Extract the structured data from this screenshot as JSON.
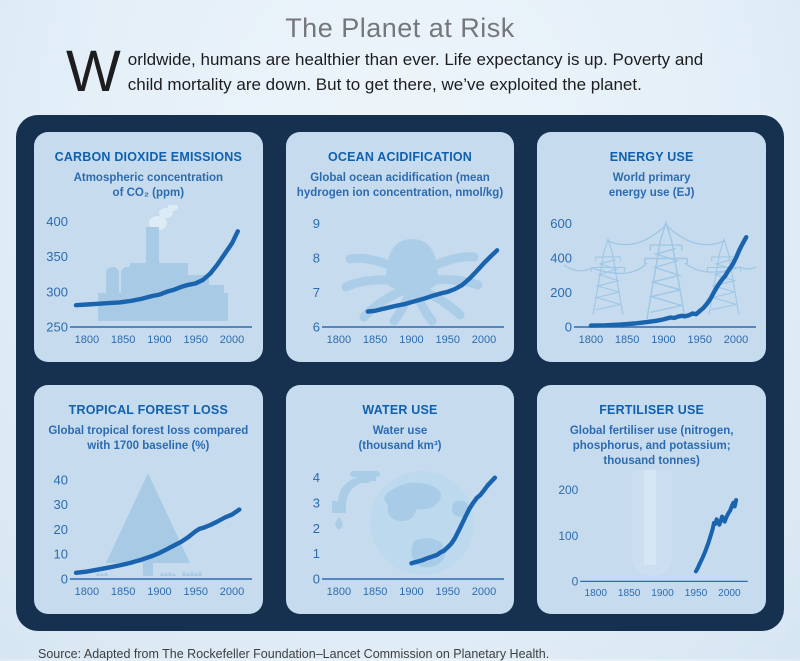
{
  "page": {
    "title": "The Planet at Risk",
    "intro_dropcap": "W",
    "intro_text": "orldwide, humans are healthier than ever. Life expectancy is up. Poverty and child mortality are down. But to get there, we’ve exploited the planet.",
    "source": "Source: Adapted from The Rockefeller Foundation–Lancet Commission on Planetary Health."
  },
  "colors": {
    "page_bg": "#e4eff8",
    "board_bg": "#16314f",
    "panel_bg": "#c6dcee",
    "line_accent": "#1a63ae",
    "panel_title": "#1060ae",
    "tick_text": "#2d6bb0",
    "icon_silhouette": "#a8cae5",
    "header_gray": "#75777b"
  },
  "panels": [
    {
      "title": "CARBON DIOXIDE EMISSIONS",
      "subtitle": "Atmospheric concentration\nof CO₂ (ppm)",
      "icon": "factory-icon"
    },
    {
      "title": "OCEAN ACIDIFICATION",
      "subtitle": "Global ocean acidification (mean\nhydrogen ion concentration, nmol/kg)",
      "icon": "octopus-icon"
    },
    {
      "title": "ENERGY USE",
      "subtitle": "World primary\nenergy use (EJ)",
      "icon": "pylons-icon"
    },
    {
      "title": "TROPICAL FOREST LOSS",
      "subtitle": "Global tropical forest loss compared\nwith 1700 baseline (%)",
      "icon": "tree-icon"
    },
    {
      "title": "WATER USE",
      "subtitle": "Water use\n(thousand km³)",
      "icon": "globe-faucet-icon"
    },
    {
      "title": "FERTILISER USE",
      "subtitle": "Global fertiliser use (nitrogen,\nphosphorus, and potassium;\nthousand tonnes)",
      "icon": "fertiliser-sack-icon"
    }
  ],
  "chart_data": [
    {
      "type": "line",
      "title": "CARBON DIOXIDE EMISSIONS",
      "ylabel": "Atmospheric concentration of CO₂ (ppm)",
      "x_domain": [
        1785,
        2022
      ],
      "x_ticks": [
        1800,
        1850,
        1900,
        1950,
        2000
      ],
      "y_domain": [
        250,
        412
      ],
      "y_ticks": [
        250,
        300,
        350,
        400
      ],
      "points": [
        [
          1785,
          281
        ],
        [
          1800,
          282
        ],
        [
          1815,
          283
        ],
        [
          1830,
          284
        ],
        [
          1845,
          285
        ],
        [
          1860,
          287
        ],
        [
          1875,
          290
        ],
        [
          1890,
          294
        ],
        [
          1900,
          296
        ],
        [
          1910,
          300
        ],
        [
          1920,
          303
        ],
        [
          1930,
          307
        ],
        [
          1940,
          310
        ],
        [
          1950,
          312
        ],
        [
          1960,
          317
        ],
        [
          1970,
          326
        ],
        [
          1980,
          339
        ],
        [
          1990,
          354
        ],
        [
          2000,
          369
        ],
        [
          2008,
          386
        ]
      ]
    },
    {
      "type": "line",
      "title": "OCEAN ACIDIFICATION",
      "ylabel": "Global ocean acidification (mean hydrogen ion concentration, nmol/kg)",
      "x_domain": [
        1785,
        2022
      ],
      "x_ticks": [
        1800,
        1850,
        1900,
        1950,
        2000
      ],
      "y_domain": [
        6,
        9.3
      ],
      "y_ticks": [
        6,
        7,
        8,
        9
      ],
      "points": [
        [
          1840,
          6.45
        ],
        [
          1850,
          6.47
        ],
        [
          1860,
          6.52
        ],
        [
          1870,
          6.57
        ],
        [
          1880,
          6.62
        ],
        [
          1890,
          6.66
        ],
        [
          1900,
          6.72
        ],
        [
          1910,
          6.78
        ],
        [
          1920,
          6.84
        ],
        [
          1930,
          6.91
        ],
        [
          1940,
          6.97
        ],
        [
          1950,
          7.02
        ],
        [
          1960,
          7.1
        ],
        [
          1970,
          7.22
        ],
        [
          1980,
          7.4
        ],
        [
          1990,
          7.62
        ],
        [
          2000,
          7.85
        ],
        [
          2010,
          8.06
        ],
        [
          2018,
          8.22
        ]
      ]
    },
    {
      "type": "line",
      "title": "ENERGY USE",
      "ylabel": "World primary energy use (EJ)",
      "x_domain": [
        1785,
        2022
      ],
      "x_ticks": [
        1800,
        1850,
        1900,
        1950,
        2000
      ],
      "y_domain": [
        0,
        660
      ],
      "y_ticks": [
        0,
        200,
        400,
        600
      ],
      "points": [
        [
          1800,
          8
        ],
        [
          1810,
          9
        ],
        [
          1820,
          10
        ],
        [
          1830,
          12
        ],
        [
          1840,
          14
        ],
        [
          1850,
          17
        ],
        [
          1860,
          20
        ],
        [
          1870,
          25
        ],
        [
          1880,
          30
        ],
        [
          1890,
          36
        ],
        [
          1900,
          44
        ],
        [
          1905,
          50
        ],
        [
          1910,
          55
        ],
        [
          1915,
          52
        ],
        [
          1920,
          60
        ],
        [
          1925,
          65
        ],
        [
          1930,
          62
        ],
        [
          1935,
          68
        ],
        [
          1940,
          78
        ],
        [
          1945,
          74
        ],
        [
          1950,
          92
        ],
        [
          1955,
          110
        ],
        [
          1960,
          135
        ],
        [
          1965,
          165
        ],
        [
          1970,
          205
        ],
        [
          1975,
          240
        ],
        [
          1980,
          270
        ],
        [
          1985,
          295
        ],
        [
          1990,
          330
        ],
        [
          1995,
          360
        ],
        [
          2000,
          400
        ],
        [
          2005,
          450
        ],
        [
          2010,
          490
        ],
        [
          2014,
          520
        ]
      ]
    },
    {
      "type": "line",
      "title": "TROPICAL FOREST LOSS",
      "ylabel": "Global tropical forest loss compared with 1700 baseline (%)",
      "x_domain": [
        1785,
        2022
      ],
      "x_ticks": [
        1800,
        1850,
        1900,
        1950,
        2000
      ],
      "y_domain": [
        0,
        46
      ],
      "y_ticks": [
        0,
        10,
        20,
        30,
        40
      ],
      "points": [
        [
          1785,
          2.5
        ],
        [
          1800,
          3
        ],
        [
          1815,
          3.8
        ],
        [
          1830,
          4.6
        ],
        [
          1845,
          5.5
        ],
        [
          1860,
          6.5
        ],
        [
          1875,
          7.8
        ],
        [
          1890,
          9.3
        ],
        [
          1900,
          10.5
        ],
        [
          1910,
          12
        ],
        [
          1920,
          13.5
        ],
        [
          1930,
          15
        ],
        [
          1940,
          17
        ],
        [
          1950,
          19.3
        ],
        [
          1955,
          20.2
        ],
        [
          1960,
          20.6
        ],
        [
          1970,
          21.8
        ],
        [
          1980,
          23.2
        ],
        [
          1990,
          24.8
        ],
        [
          2000,
          26
        ],
        [
          2010,
          28
        ]
      ]
    },
    {
      "type": "line",
      "title": "WATER USE",
      "ylabel": "Water use (thousand km³)",
      "x_domain": [
        1785,
        2022
      ],
      "x_ticks": [
        1800,
        1850,
        1900,
        1950,
        2000
      ],
      "y_domain": [
        0,
        4.5
      ],
      "y_ticks": [
        0,
        1,
        2,
        3,
        4
      ],
      "points": [
        [
          1900,
          0.62
        ],
        [
          1905,
          0.66
        ],
        [
          1910,
          0.7
        ],
        [
          1915,
          0.74
        ],
        [
          1920,
          0.8
        ],
        [
          1925,
          0.85
        ],
        [
          1930,
          0.9
        ],
        [
          1935,
          0.95
        ],
        [
          1940,
          1.05
        ],
        [
          1945,
          1.12
        ],
        [
          1950,
          1.25
        ],
        [
          1955,
          1.4
        ],
        [
          1960,
          1.62
        ],
        [
          1965,
          1.9
        ],
        [
          1970,
          2.2
        ],
        [
          1975,
          2.5
        ],
        [
          1980,
          2.78
        ],
        [
          1985,
          3.0
        ],
        [
          1990,
          3.2
        ],
        [
          1995,
          3.32
        ],
        [
          2000,
          3.5
        ],
        [
          2005,
          3.7
        ],
        [
          2010,
          3.85
        ],
        [
          2015,
          4.0
        ]
      ]
    },
    {
      "type": "line",
      "title": "FERTILISER USE",
      "ylabel": "Global fertiliser use (nitrogen, phosphorus, and potassium; thousand tonnes)",
      "x_domain": [
        1785,
        2022
      ],
      "x_ticks": [
        1800,
        1850,
        1900,
        1950,
        2000
      ],
      "y_domain": [
        0,
        230
      ],
      "y_ticks": [
        0,
        100,
        200
      ],
      "points": [
        [
          1950,
          22
        ],
        [
          1953,
          30
        ],
        [
          1956,
          40
        ],
        [
          1960,
          52
        ],
        [
          1964,
          66
        ],
        [
          1968,
          82
        ],
        [
          1972,
          100
        ],
        [
          1975,
          115
        ],
        [
          1977,
          128
        ],
        [
          1979,
          126
        ],
        [
          1981,
          136
        ],
        [
          1983,
          128
        ],
        [
          1985,
          124
        ],
        [
          1987,
          132
        ],
        [
          1989,
          142
        ],
        [
          1991,
          138
        ],
        [
          1993,
          131
        ],
        [
          1995,
          139
        ],
        [
          1998,
          148
        ],
        [
          2001,
          155
        ],
        [
          2004,
          166
        ],
        [
          2006,
          172
        ],
        [
          2008,
          164
        ],
        [
          2010,
          178
        ]
      ]
    }
  ]
}
